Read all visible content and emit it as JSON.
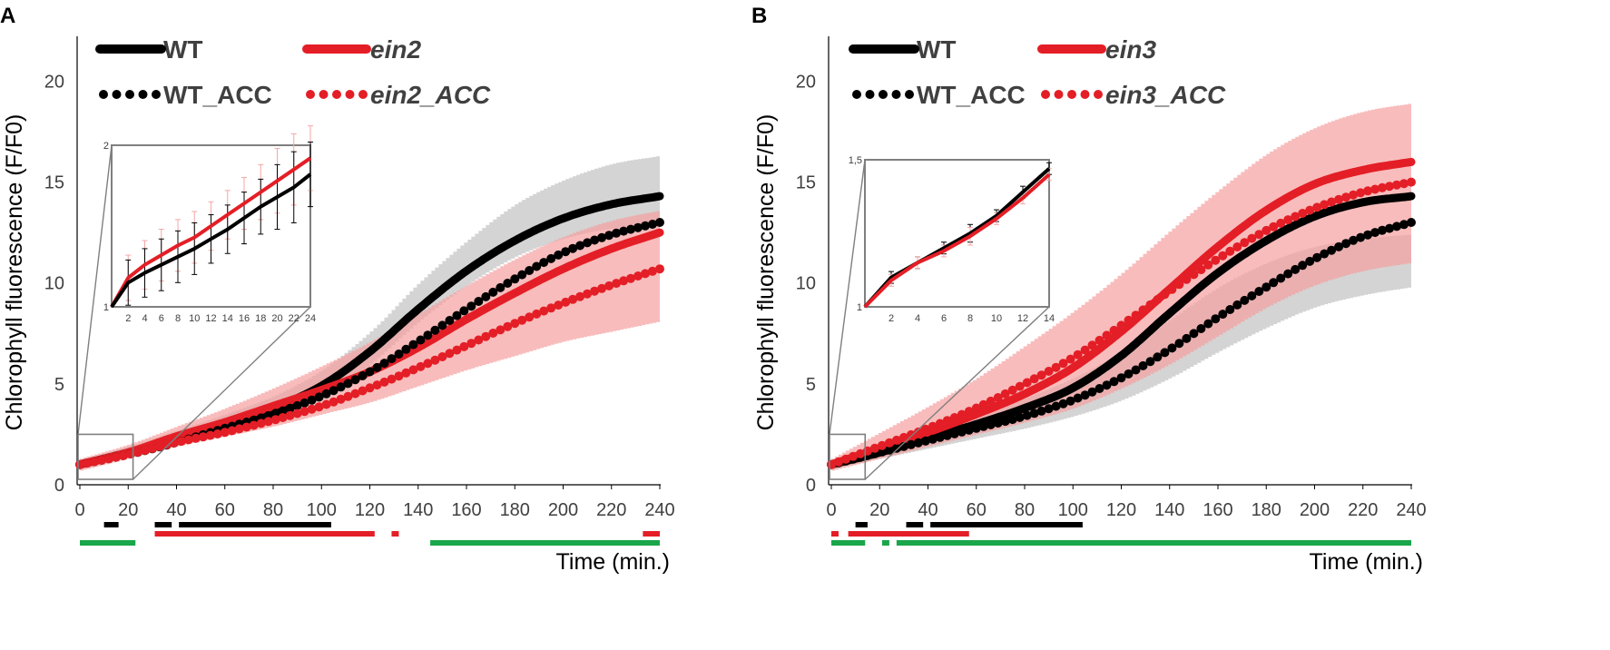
{
  "colors": {
    "wt": "#000000",
    "mut": "#e41e26",
    "green": "#1aa64a",
    "gray_band": "#c8c8c8",
    "red_band": "#f5a0a0",
    "inset_frame": "#7f7f7f",
    "axis_text": "#404040"
  },
  "chart_data": [
    {
      "type": "line",
      "panel_label": "A",
      "ylabel": "Chlorophyll fluorescence (F/F0)",
      "xlabel": "Time (min.)",
      "xlim": [
        0,
        240
      ],
      "ylim": [
        0,
        22
      ],
      "x_ticks": [
        0,
        20,
        40,
        60,
        80,
        100,
        120,
        140,
        160,
        180,
        200,
        220,
        240
      ],
      "y_ticks": [
        0,
        5,
        10,
        15,
        20
      ],
      "legend": [
        {
          "label": "WT",
          "style": "solid",
          "color": "black",
          "italic": false
        },
        {
          "label": "ein2",
          "style": "solid",
          "color": "red",
          "italic": true
        },
        {
          "label": "WT_ACC",
          "style": "dotted",
          "color": "black",
          "italic": false
        },
        {
          "label": "ein2_ACC",
          "style": "dotted",
          "color": "red",
          "italic": true
        }
      ],
      "x": [
        0,
        20,
        40,
        60,
        80,
        100,
        120,
        140,
        160,
        180,
        200,
        220,
        240
      ],
      "series": [
        {
          "name": "WT",
          "style": "solid",
          "color": "black",
          "values": [
            1.0,
            1.6,
            2.3,
            3.0,
            3.8,
            4.9,
            6.6,
            8.7,
            10.6,
            12.1,
            13.2,
            13.9,
            14.3
          ]
        },
        {
          "name": "ein2",
          "style": "solid",
          "color": "red",
          "values": [
            1.0,
            1.6,
            2.4,
            3.1,
            3.9,
            4.7,
            5.6,
            6.8,
            8.2,
            9.5,
            10.7,
            11.7,
            12.5
          ]
        },
        {
          "name": "WT_ACC",
          "style": "dotted",
          "color": "black",
          "values": [
            1.0,
            1.5,
            2.1,
            2.8,
            3.5,
            4.4,
            5.6,
            7.1,
            8.7,
            10.2,
            11.5,
            12.4,
            13.0
          ]
        },
        {
          "name": "ein2_ACC",
          "style": "dotted",
          "color": "red",
          "values": [
            1.0,
            1.5,
            2.1,
            2.6,
            3.2,
            3.9,
            4.8,
            5.8,
            6.9,
            8.0,
            9.0,
            9.9,
            10.7
          ]
        }
      ],
      "bands": [
        {
          "name": "WT",
          "color": "gray",
          "lower": [
            0.8,
            1.4,
            2.0,
            2.7,
            3.4,
            4.4,
            6.0,
            8.1,
            9.9,
            11.3,
            12.2,
            12.7,
            12.9
          ],
          "upper": [
            1.2,
            1.9,
            2.7,
            3.5,
            4.4,
            5.7,
            7.6,
            10.0,
            12.1,
            13.9,
            15.1,
            15.9,
            16.3
          ]
        },
        {
          "name": "ein2",
          "color": "red",
          "lower": [
            0.7,
            1.3,
            1.9,
            2.4,
            2.9,
            3.5,
            4.1,
            4.9,
            5.7,
            6.4,
            7.1,
            7.6,
            8.1
          ],
          "upper": [
            1.3,
            2.0,
            2.9,
            3.8,
            4.8,
            5.9,
            7.1,
            8.5,
            9.9,
            11.2,
            12.3,
            13.1,
            13.6
          ]
        }
      ],
      "inset": {
        "xlim": [
          0,
          24
        ],
        "ylim": [
          1,
          2
        ],
        "x_ticks": [
          "2",
          "4",
          "6",
          "8",
          "10",
          "12",
          "14",
          "16",
          "18",
          "20",
          "22",
          "24"
        ],
        "y_tick_labels": [
          "1",
          "2"
        ],
        "x": [
          0,
          2,
          4,
          6,
          8,
          10,
          12,
          14,
          16,
          18,
          20,
          22,
          24
        ],
        "series": [
          {
            "name": "ein2",
            "color": "red",
            "values": [
              1.0,
              1.18,
              1.26,
              1.32,
              1.38,
              1.43,
              1.5,
              1.57,
              1.64,
              1.71,
              1.78,
              1.85,
              1.92
            ]
          },
          {
            "name": "WT",
            "color": "black",
            "values": [
              1.0,
              1.15,
              1.21,
              1.26,
              1.31,
              1.36,
              1.42,
              1.48,
              1.55,
              1.62,
              1.68,
              1.74,
              1.82
            ]
          }
        ],
        "errors": [
          0.0,
          0.14,
          0.15,
          0.16,
          0.16,
          0.16,
          0.15,
          0.15,
          0.16,
          0.17,
          0.2,
          0.22,
          0.2
        ]
      },
      "zoom_box": {
        "x": [
          0,
          22
        ],
        "y": [
          0,
          2.5
        ]
      },
      "significance_bars": [
        {
          "color": "black",
          "x_start": 10,
          "x_end": 16
        },
        {
          "color": "black",
          "x_start": 31,
          "x_end": 38
        },
        {
          "color": "black",
          "x_start": 41,
          "x_end": 104
        },
        {
          "color": "red",
          "x_start": 31,
          "x_end": 122
        },
        {
          "color": "red",
          "x_start": 129,
          "x_end": 132
        },
        {
          "color": "red",
          "x_start": 233,
          "x_end": 240
        },
        {
          "color": "green",
          "x_start": 0,
          "x_end": 23
        },
        {
          "color": "green",
          "x_start": 145,
          "x_end": 240
        }
      ]
    },
    {
      "type": "line",
      "panel_label": "B",
      "ylabel": "Chlorophyll fluorescence (F/F0)",
      "xlabel": "Time (min.)",
      "xlim": [
        0,
        240
      ],
      "ylim": [
        0,
        22
      ],
      "x_ticks": [
        0,
        20,
        40,
        60,
        80,
        100,
        120,
        140,
        160,
        180,
        200,
        220,
        240
      ],
      "y_ticks": [
        0,
        5,
        10,
        15,
        20
      ],
      "legend": [
        {
          "label": "WT",
          "style": "solid",
          "color": "black",
          "italic": false
        },
        {
          "label": "ein3",
          "style": "solid",
          "color": "red",
          "italic": true
        },
        {
          "label": "WT_ACC",
          "style": "dotted",
          "color": "black",
          "italic": false
        },
        {
          "label": "ein3_ACC",
          "style": "dotted",
          "color": "red",
          "italic": true
        }
      ],
      "x": [
        0,
        20,
        40,
        60,
        80,
        100,
        120,
        140,
        160,
        180,
        200,
        220,
        240
      ],
      "series": [
        {
          "name": "WT",
          "style": "solid",
          "color": "black",
          "values": [
            1.0,
            1.6,
            2.3,
            3.0,
            3.8,
            4.8,
            6.4,
            8.5,
            10.5,
            12.1,
            13.3,
            14.0,
            14.3
          ]
        },
        {
          "name": "ein3",
          "style": "solid",
          "color": "red",
          "values": [
            1.0,
            1.8,
            2.6,
            3.5,
            4.5,
            5.8,
            7.6,
            9.7,
            11.8,
            13.6,
            14.9,
            15.6,
            16.0
          ]
        },
        {
          "name": "WT_ACC",
          "style": "dotted",
          "color": "black",
          "values": [
            1.0,
            1.6,
            2.2,
            2.8,
            3.4,
            4.2,
            5.3,
            6.7,
            8.3,
            9.8,
            11.2,
            12.3,
            13.0
          ]
        },
        {
          "name": "ein3_ACC",
          "style": "dotted",
          "color": "red",
          "values": [
            1.0,
            1.9,
            2.8,
            3.8,
            5.0,
            6.3,
            7.9,
            9.6,
            11.2,
            12.6,
            13.7,
            14.5,
            15.0
          ]
        }
      ],
      "bands": [
        {
          "name": "WT",
          "color": "gray",
          "lower": [
            0.8,
            1.3,
            1.8,
            2.3,
            2.8,
            3.4,
            4.2,
            5.3,
            6.6,
            7.8,
            8.8,
            9.4,
            9.8
          ],
          "upper": [
            1.2,
            1.9,
            2.6,
            3.4,
            4.3,
            5.3,
            6.6,
            8.2,
            9.8,
            11.0,
            11.8,
            12.2,
            12.4
          ]
        },
        {
          "name": "ein3",
          "color": "red",
          "lower": [
            0.7,
            1.3,
            1.9,
            2.5,
            3.1,
            3.8,
            4.8,
            6.0,
            7.4,
            8.8,
            9.9,
            10.6,
            11.0
          ],
          "upper": [
            1.3,
            2.6,
            3.9,
            5.3,
            6.9,
            8.6,
            10.5,
            12.6,
            14.6,
            16.4,
            17.7,
            18.5,
            18.9
          ]
        }
      ],
      "inset": {
        "xlim": [
          0,
          14
        ],
        "ylim": [
          1,
          1.5
        ],
        "x_ticks": [
          "2",
          "4",
          "6",
          "8",
          "10",
          "12",
          "14"
        ],
        "y_tick_labels": [
          "1",
          "1,5"
        ],
        "x": [
          0,
          2,
          4,
          6,
          8,
          10,
          12,
          14
        ],
        "series": [
          {
            "name": "WT",
            "color": "black",
            "values": [
              1.0,
              1.1,
              1.15,
              1.2,
              1.25,
              1.31,
              1.39,
              1.47
            ]
          },
          {
            "name": "ein3",
            "color": "red",
            "values": [
              1.0,
              1.09,
              1.15,
              1.19,
              1.24,
              1.3,
              1.37,
              1.45
            ]
          }
        ],
        "errors": [
          0.0,
          0.02,
          0.02,
          0.02,
          0.03,
          0.02,
          0.02,
          0.02
        ]
      },
      "zoom_box": {
        "x": [
          0,
          14
        ],
        "y": [
          0,
          2.5
        ]
      },
      "significance_bars": [
        {
          "color": "red",
          "x_start": 0,
          "x_end": 3
        },
        {
          "color": "black",
          "x_start": 10,
          "x_end": 15
        },
        {
          "color": "black",
          "x_start": 31,
          "x_end": 38
        },
        {
          "color": "black",
          "x_start": 41,
          "x_end": 104
        },
        {
          "color": "red",
          "x_start": 7,
          "x_end": 57
        },
        {
          "color": "green",
          "x_start": 0,
          "x_end": 14
        },
        {
          "color": "green",
          "x_start": 21,
          "x_end": 24
        },
        {
          "color": "green",
          "x_start": 27,
          "x_end": 240
        }
      ]
    }
  ]
}
